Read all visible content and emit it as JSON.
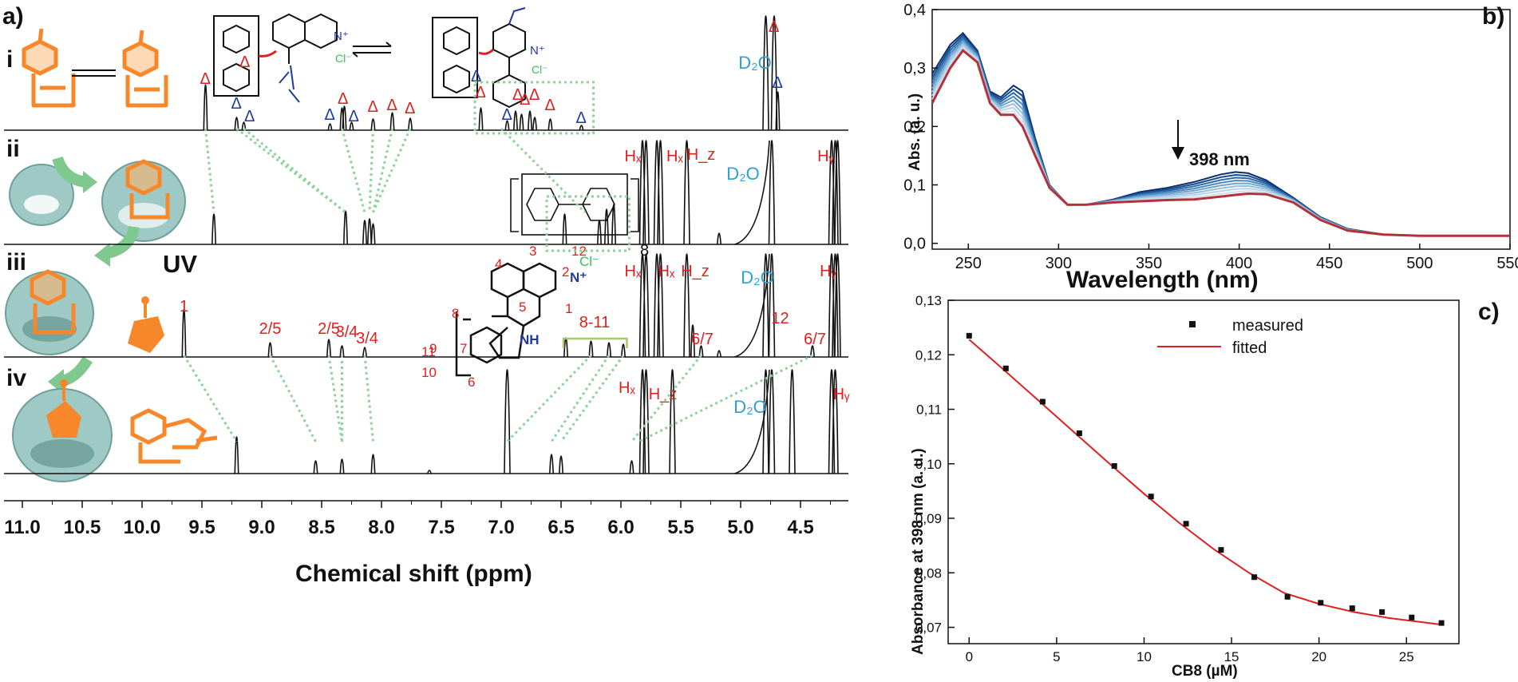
{
  "labels": {
    "panel_a": "a)",
    "panel_b": "b)",
    "panel_c": "c)",
    "trace_i": "i",
    "trace_ii": "ii",
    "trace_iii": "iii",
    "trace_iv": "iv",
    "uv": "UV",
    "delta": "Δ",
    "d2o": "D₂O",
    "hx": "Hₓ",
    "hy": "Hᵧ",
    "hz": "H_z",
    "cb8_repeat": "8",
    "chloride": "Cl⁻",
    "peak_1": "1",
    "peak_25": "2/5",
    "peak_34": "3/4",
    "peak_811": "8-11",
    "peak_67": "6/7",
    "peak_12": "12",
    "nh": "NH",
    "nplus": "N⁺",
    "atoms": [
      "1",
      "2",
      "3",
      "4",
      "5",
      "6",
      "7",
      "8",
      "9",
      "10",
      "11",
      "12"
    ]
  },
  "chart_data": [
    {
      "type": "line",
      "panel": "a",
      "xlabel": "Chemical shift (ppm)",
      "xlim": [
        11.2,
        4.1
      ],
      "x_ticks": [
        "11.0",
        "10.5",
        "10.0",
        "9.5",
        "9.0",
        "8.5",
        "8.0",
        "7.5",
        "7.0",
        "6.5",
        "6.0",
        "5.5",
        "5.0",
        "4.5"
      ],
      "series": [
        {
          "trace": "i",
          "peaks": [
            9.47,
            9.21,
            9.15,
            8.43,
            8.33,
            8.31,
            8.25,
            8.07,
            7.91,
            7.76,
            7.17,
            6.95,
            6.88,
            6.83,
            6.76,
            6.72,
            6.59,
            6.33,
            4.79,
            4.72,
            4.69
          ]
        },
        {
          "trace": "ii",
          "peaks": [
            9.4,
            8.3,
            8.14,
            8.1,
            8.07,
            6.47,
            6.18,
            6.12,
            6.06,
            5.82,
            5.79,
            5.7,
            5.67,
            5.45,
            5.18,
            4.74,
            4.24,
            4.21,
            4.19
          ]
        },
        {
          "trace": "iii",
          "peaks": [
            9.65,
            8.93,
            8.44,
            8.33,
            8.14,
            6.46,
            6.25,
            6.1,
            5.98,
            5.82,
            5.79,
            5.7,
            5.67,
            5.45,
            5.4,
            5.33,
            5.18,
            4.79,
            4.74,
            4.4,
            4.24,
            4.21,
            4.19
          ]
        },
        {
          "trace": "iv",
          "peaks": [
            9.21,
            8.55,
            8.33,
            8.07,
            7.6,
            6.95,
            6.58,
            6.5,
            5.91,
            5.82,
            5.79,
            5.57,
            4.79,
            4.74,
            4.57,
            4.24,
            4.21
          ]
        }
      ]
    },
    {
      "type": "line",
      "panel": "b",
      "xlabel": "Wavelength (nm)",
      "ylabel": "Abs. (a. u.)",
      "xlim": [
        230,
        550
      ],
      "ylim": [
        -0.01,
        0.4
      ],
      "x_ticks": [
        "250",
        "300",
        "350",
        "400",
        "450",
        "500",
        "550"
      ],
      "y_ticks": [
        "0,0",
        "0,1",
        "0,2",
        "0,3",
        "0,4"
      ],
      "annotation": "398 nm",
      "annotation_x": 398,
      "base": {
        "x": [
          230,
          240,
          247,
          255,
          262,
          268,
          275,
          280,
          287,
          295,
          305,
          315,
          330,
          345,
          360,
          375,
          390,
          398,
          405,
          415,
          430,
          445,
          460,
          480,
          500,
          520,
          550
        ],
        "y_start": [
          0.29,
          0.34,
          0.36,
          0.33,
          0.26,
          0.25,
          0.27,
          0.26,
          0.18,
          0.1,
          0.066,
          0.066,
          0.075,
          0.088,
          0.095,
          0.105,
          0.118,
          0.122,
          0.12,
          0.108,
          0.078,
          0.045,
          0.025,
          0.015,
          0.013,
          0.013,
          0.013
        ],
        "y_end": [
          0.24,
          0.3,
          0.33,
          0.31,
          0.24,
          0.22,
          0.22,
          0.2,
          0.15,
          0.095,
          0.066,
          0.066,
          0.07,
          0.072,
          0.074,
          0.075,
          0.08,
          0.083,
          0.085,
          0.084,
          0.07,
          0.04,
          0.022,
          0.015,
          0.013,
          0.013,
          0.013
        ]
      },
      "series_colors": [
        "#0b2f6b",
        "#134a8e",
        "#2a69a8",
        "#4a87bd",
        "#6fa5cf",
        "#97c0de",
        "#b9d4ea",
        "#cfe0ee",
        "#b1323a"
      ]
    },
    {
      "type": "scatter",
      "panel": "c",
      "xlabel": "CB8 (µM)",
      "ylabel": "Absorbance at 398 nm (a. u.)",
      "xlim": [
        -1.2,
        28.0
      ],
      "ylim": [
        0.067,
        0.13
      ],
      "x_ticks": [
        "0",
        "5",
        "10",
        "15",
        "20",
        "25"
      ],
      "y_ticks": [
        "0,07",
        "0,08",
        "0,09",
        "0,10",
        "0,11",
        "0,12",
        "0,13"
      ],
      "legend": [
        "measured",
        "fitted"
      ],
      "legend_position": "top-right",
      "measured": {
        "x": [
          0,
          2.1,
          4.2,
          6.3,
          8.3,
          10.4,
          12.4,
          14.4,
          16.3,
          18.2,
          20.1,
          21.9,
          23.6,
          25.3,
          27.0
        ],
        "y": [
          0.1235,
          0.1175,
          0.1114,
          0.1056,
          0.0996,
          0.094,
          0.089,
          0.0842,
          0.0792,
          0.0756,
          0.0745,
          0.0735,
          0.0728,
          0.0718,
          0.0708
        ]
      },
      "fitted": {
        "x": [
          0,
          2,
          4,
          6,
          8,
          10,
          12,
          14,
          16,
          18,
          20,
          22,
          24,
          27
        ],
        "y": [
          0.1228,
          0.1172,
          0.1115,
          0.1058,
          0.1001,
          0.0945,
          0.0892,
          0.0843,
          0.08,
          0.0763,
          0.0743,
          0.0728,
          0.0717,
          0.0705
        ]
      }
    }
  ],
  "colors": {
    "spectrum": "#111111",
    "guide": "#8fd39a",
    "red": "#e01f1f",
    "blue": "#1f3aa0",
    "d2o": "#2d9fd6",
    "orange": "#f6872a",
    "cb8_shell": "#9ec9c4",
    "fit": "#e01f1f",
    "bracket": "#a7c86b"
  }
}
